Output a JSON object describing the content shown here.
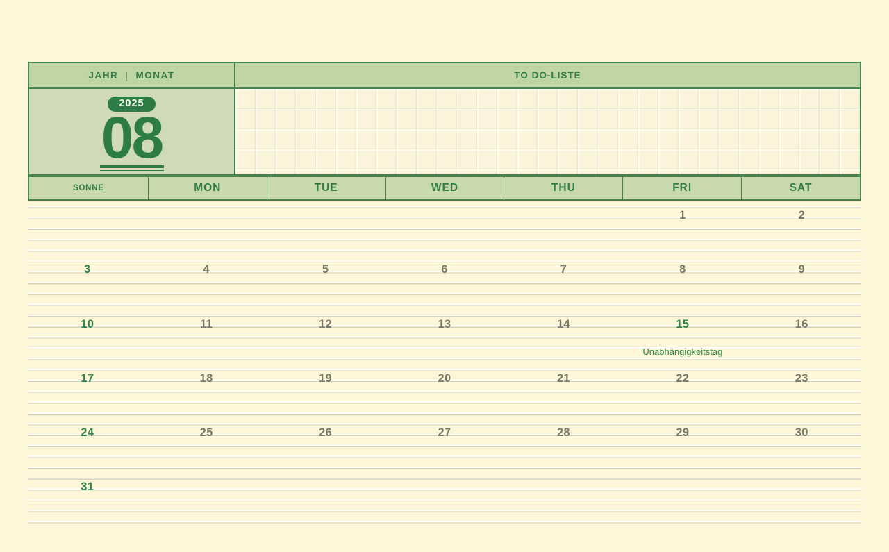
{
  "colors": {
    "background": "#fdf6d9",
    "panel_green": "#bfd5a4",
    "panel_green_light": "#cfdab8",
    "weekday_green": "#c9d9ae",
    "border_green": "#46824b",
    "text_green": "#357b45",
    "accent_green": "#2e7c45",
    "day_highlight_green": "#2f8548",
    "day_gray": "#7b7868",
    "ruled_line": "#d8d1b2"
  },
  "header": {
    "year_label": "JAHR",
    "separator": "|",
    "month_label": "MONAT",
    "year_value": "2025",
    "month_value": "08",
    "todo_title": "TO DO-LISTE"
  },
  "weekdays": [
    "SONNE",
    "MON",
    "TUE",
    "WED",
    "THU",
    "FRI",
    "SAT"
  ],
  "calendar": {
    "rows": [
      [
        null,
        null,
        null,
        null,
        null,
        {
          "day": "1"
        },
        {
          "day": "2"
        }
      ],
      [
        {
          "day": "3",
          "highlight": true
        },
        {
          "day": "4"
        },
        {
          "day": "5"
        },
        {
          "day": "6"
        },
        {
          "day": "7"
        },
        {
          "day": "8"
        },
        {
          "day": "9"
        }
      ],
      [
        {
          "day": "10",
          "highlight": true
        },
        {
          "day": "11"
        },
        {
          "day": "12"
        },
        {
          "day": "13"
        },
        {
          "day": "14"
        },
        {
          "day": "15",
          "highlight": true,
          "note": "Unabhängigkeitstag"
        },
        {
          "day": "16"
        }
      ],
      [
        {
          "day": "17",
          "highlight": true
        },
        {
          "day": "18"
        },
        {
          "day": "19"
        },
        {
          "day": "20"
        },
        {
          "day": "21"
        },
        {
          "day": "22"
        },
        {
          "day": "23"
        }
      ],
      [
        {
          "day": "24",
          "highlight": true
        },
        {
          "day": "25"
        },
        {
          "day": "26"
        },
        {
          "day": "27"
        },
        {
          "day": "28"
        },
        {
          "day": "29"
        },
        {
          "day": "30"
        }
      ],
      [
        {
          "day": "31",
          "highlight": true
        },
        null,
        null,
        null,
        null,
        null,
        null
      ]
    ]
  }
}
